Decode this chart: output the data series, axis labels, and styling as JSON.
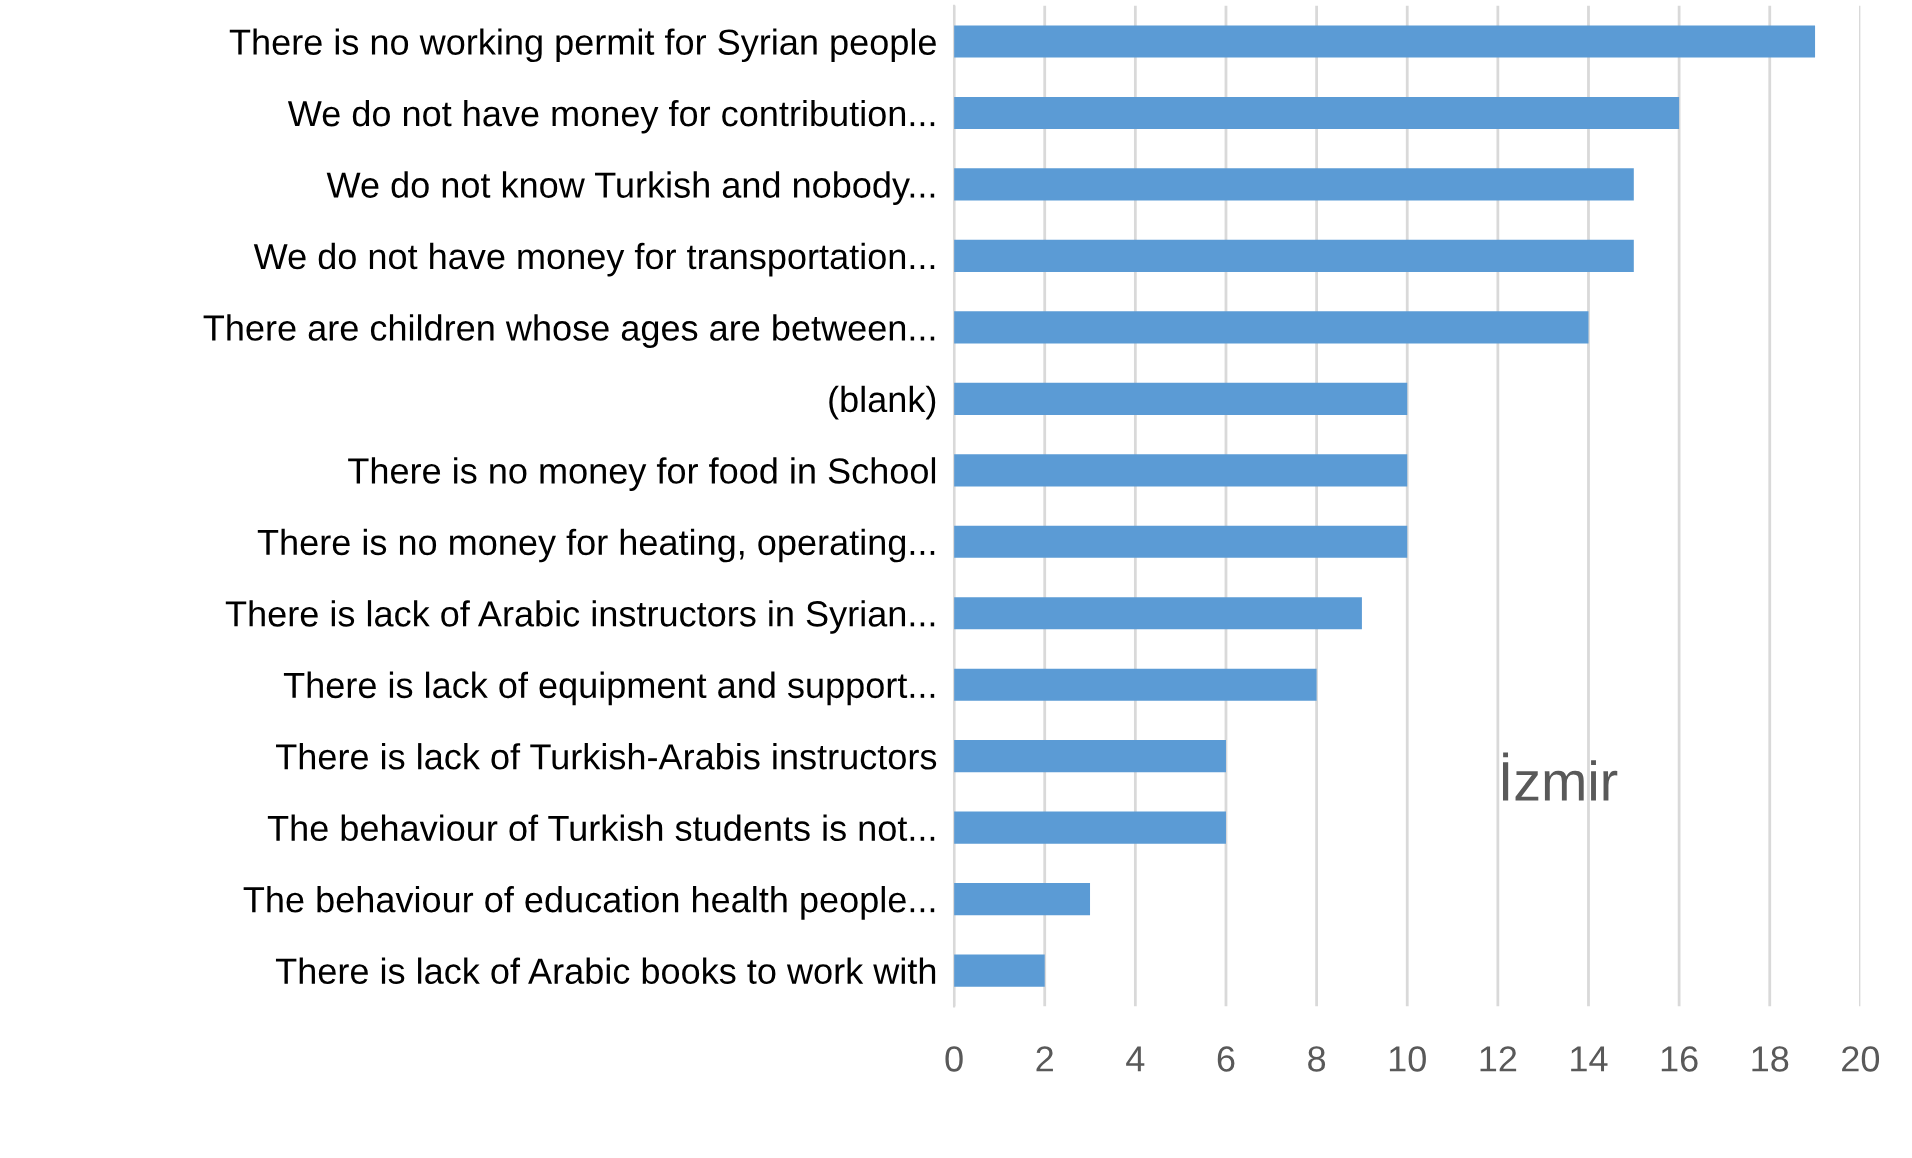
{
  "chart_data": {
    "type": "bar",
    "orientation": "horizontal",
    "categories": [
      "There is no working permit for Syrian people",
      "We do not have money for contribution...",
      "We do not know Turkish and nobody...",
      "We do not have money for transportation...",
      "There are children whose ages are between...",
      "(blank)",
      "There is no money for food in School",
      "There is no money for heating, operating...",
      "There is lack of Arabic instructors in Syrian...",
      "There is lack of equipment and support...",
      "There is lack of Turkish-Arabis instructors",
      "The behaviour of Turkish students is not...",
      "The behaviour of education health people...",
      "There is lack of Arabic books to work with"
    ],
    "values": [
      19,
      16,
      15,
      15,
      14,
      10,
      10,
      10,
      9,
      8,
      6,
      6,
      3,
      2
    ],
    "color": "#5b9bd5",
    "xlim": [
      0,
      20
    ],
    "xticks": [
      0,
      2,
      4,
      6,
      8,
      10,
      12,
      14,
      16,
      18,
      20
    ],
    "grid": "x",
    "legend": false,
    "annotations": [
      "İzmir"
    ]
  }
}
